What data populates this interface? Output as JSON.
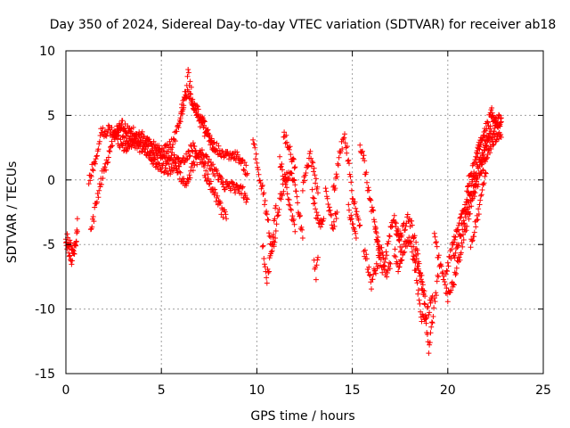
{
  "chart_data": {
    "type": "scatter",
    "title": "Day 350 of 2024, Sidereal Day-to-day VTEC variation (SDTVAR) for receiver ab18",
    "xlabel": "GPS time / hours",
    "ylabel": "SDTVAR / TECUs",
    "xlim": [
      0,
      25
    ],
    "ylim": [
      -15,
      10
    ],
    "xticks": [
      0,
      5,
      10,
      15,
      20,
      25
    ],
    "yticks": [
      -15,
      -10,
      -5,
      0,
      5,
      10
    ],
    "grid": true,
    "legend": "none",
    "marker": "+",
    "colors": {
      "series": "#ff0000",
      "grid": "#a0a0a0",
      "axis": "#000000"
    },
    "series": [
      {
        "name": "SDTVAR",
        "tracks": [
          [
            [
              0.0,
              -4.8
            ],
            [
              0.15,
              -5.5
            ],
            [
              0.3,
              -6.2
            ],
            [
              0.45,
              -5.5
            ],
            [
              0.55,
              -4.5
            ],
            [
              0.6,
              -3.0
            ]
          ],
          [
            [
              0.0,
              -4.5
            ],
            [
              0.2,
              -4.8
            ],
            [
              0.4,
              -5.5
            ],
            [
              0.6,
              -4.0
            ]
          ],
          [
            [
              1.2,
              -0.2
            ],
            [
              1.4,
              1.0
            ],
            [
              1.6,
              2.0
            ],
            [
              1.8,
              3.5
            ],
            [
              2.0,
              3.8
            ],
            [
              2.3,
              3.8
            ],
            [
              2.6,
              4.0
            ],
            [
              3.0,
              4.2
            ],
            [
              3.4,
              3.8
            ],
            [
              3.8,
              3.3
            ],
            [
              4.2,
              2.5
            ],
            [
              4.6,
              2.0
            ],
            [
              5.0,
              2.0
            ],
            [
              5.3,
              2.5
            ],
            [
              5.6,
              3.0
            ],
            [
              5.9,
              4.0
            ],
            [
              6.1,
              5.5
            ],
            [
              6.3,
              7.0
            ],
            [
              6.4,
              8.2
            ],
            [
              6.6,
              6.5
            ],
            [
              6.8,
              5.0
            ],
            [
              7.2,
              4.0
            ],
            [
              7.6,
              3.0
            ],
            [
              8.0,
              2.2
            ],
            [
              8.5,
              2.0
            ],
            [
              9.0,
              1.8
            ],
            [
              9.3,
              1.2
            ],
            [
              9.5,
              0.5
            ]
          ],
          [
            [
              1.3,
              -4.0
            ],
            [
              1.5,
              -2.5
            ],
            [
              1.7,
              -1.0
            ],
            [
              1.9,
              0.3
            ],
            [
              2.1,
              1.2
            ],
            [
              2.3,
              2.3
            ],
            [
              2.5,
              3.3
            ],
            [
              2.8,
              4.0
            ],
            [
              3.1,
              3.5
            ],
            [
              3.4,
              2.8
            ],
            [
              3.7,
              2.6
            ],
            [
              4.0,
              2.5
            ],
            [
              4.3,
              2.2
            ],
            [
              4.6,
              1.5
            ],
            [
              5.0,
              1.0
            ],
            [
              5.4,
              0.8
            ],
            [
              5.8,
              1.0
            ],
            [
              6.1,
              0.0
            ],
            [
              6.3,
              -0.8
            ],
            [
              6.5,
              0.5
            ],
            [
              6.8,
              1.5
            ],
            [
              7.1,
              2.0
            ],
            [
              7.4,
              1.5
            ],
            [
              7.7,
              0.8
            ],
            [
              8.0,
              0.3
            ],
            [
              8.3,
              -0.3
            ],
            [
              8.7,
              -0.5
            ],
            [
              9.0,
              -0.8
            ],
            [
              9.3,
              -1.0
            ],
            [
              9.5,
              -1.5
            ]
          ],
          [
            [
              2.5,
              3.8
            ],
            [
              2.8,
              3.0
            ],
            [
              3.0,
              2.5
            ],
            [
              3.3,
              2.8
            ],
            [
              3.6,
              3.2
            ],
            [
              4.0,
              3.4
            ],
            [
              4.4,
              3.0
            ],
            [
              4.8,
              2.3
            ],
            [
              5.2,
              1.8
            ],
            [
              5.5,
              2.0
            ],
            [
              5.8,
              1.5
            ],
            [
              6.0,
              1.0
            ],
            [
              6.4,
              2.0
            ],
            [
              6.7,
              2.8
            ],
            [
              7.0,
              1.8
            ],
            [
              7.3,
              0.5
            ],
            [
              7.6,
              -0.5
            ],
            [
              7.9,
              -1.5
            ],
            [
              8.2,
              -2.5
            ],
            [
              8.4,
              -3.0
            ]
          ],
          [
            [
              6.0,
              5.2
            ],
            [
              6.2,
              6.3
            ],
            [
              6.4,
              6.8
            ],
            [
              6.6,
              6.0
            ],
            [
              6.8,
              5.5
            ],
            [
              7.0,
              5.0
            ],
            [
              7.2,
              4.3
            ],
            [
              7.4,
              3.6
            ],
            [
              7.6,
              2.8
            ],
            [
              7.8,
              2.2
            ]
          ],
          [
            [
              9.8,
              2.8
            ],
            [
              10.0,
              1.5
            ],
            [
              10.2,
              -0.2
            ],
            [
              10.4,
              -1.5
            ],
            [
              10.6,
              -3.5
            ],
            [
              10.8,
              -5.5
            ],
            [
              11.0,
              -4.0
            ],
            [
              11.2,
              -1.5
            ],
            [
              11.5,
              0.0
            ],
            [
              11.8,
              0.5
            ],
            [
              12.0,
              -0.5
            ],
            [
              12.2,
              -2.5
            ],
            [
              12.4,
              -4.5
            ]
          ],
          [
            [
              10.3,
              -5.0
            ],
            [
              10.4,
              -6.5
            ],
            [
              10.5,
              -8.0
            ],
            [
              10.7,
              -6.0
            ],
            [
              10.9,
              -3.5
            ],
            [
              11.0,
              -2.0
            ]
          ],
          [
            [
              11.2,
              1.5
            ],
            [
              11.4,
              0.5
            ],
            [
              11.6,
              -1.0
            ],
            [
              11.8,
              -2.5
            ],
            [
              12.0,
              -4.0
            ]
          ],
          [
            [
              11.4,
              3.5
            ],
            [
              11.6,
              2.8
            ],
            [
              11.8,
              2.0
            ],
            [
              12.0,
              1.0
            ]
          ],
          [
            [
              12.4,
              -0.5
            ],
            [
              12.6,
              0.8
            ],
            [
              12.8,
              1.8
            ],
            [
              13.0,
              0.5
            ],
            [
              13.2,
              -1.0
            ]
          ],
          [
            [
              12.9,
              -1.0
            ],
            [
              13.1,
              -2.5
            ],
            [
              13.3,
              -3.5
            ],
            [
              13.5,
              -3.0
            ]
          ],
          [
            [
              13.0,
              -6.5
            ],
            [
              13.1,
              -7.5
            ],
            [
              13.2,
              -6.0
            ]
          ],
          [
            [
              13.6,
              -1.0
            ],
            [
              13.8,
              -2.5
            ],
            [
              14.0,
              -3.5
            ],
            [
              14.2,
              -2.5
            ]
          ],
          [
            [
              14.0,
              -1.0
            ],
            [
              14.2,
              0.5
            ],
            [
              14.4,
              2.5
            ],
            [
              14.6,
              3.5
            ],
            [
              14.8,
              1.5
            ],
            [
              15.0,
              -1.0
            ],
            [
              15.2,
              -2.5
            ],
            [
              15.4,
              -3.5
            ]
          ],
          [
            [
              14.8,
              -2.0
            ],
            [
              15.0,
              -3.5
            ],
            [
              15.2,
              -4.5
            ]
          ],
          [
            [
              15.4,
              2.5
            ],
            [
              15.6,
              1.5
            ],
            [
              15.8,
              -0.5
            ],
            [
              16.0,
              -2.0
            ],
            [
              16.2,
              -3.5
            ],
            [
              16.4,
              -5.5
            ],
            [
              16.5,
              -6.5
            ],
            [
              16.6,
              -7.0
            ],
            [
              16.8,
              -5.5
            ],
            [
              17.0,
              -4.0
            ],
            [
              17.2,
              -3.0
            ],
            [
              17.4,
              -4.5
            ],
            [
              17.6,
              -5.5
            ],
            [
              17.8,
              -5.0
            ],
            [
              18.0,
              -4.5
            ],
            [
              18.2,
              -6.0
            ],
            [
              18.4,
              -8.0
            ],
            [
              18.6,
              -10.5
            ],
            [
              18.8,
              -11.0
            ],
            [
              19.0,
              -10.0
            ],
            [
              19.2,
              -9.0
            ]
          ],
          [
            [
              15.6,
              -5.5
            ],
            [
              15.8,
              -6.5
            ],
            [
              16.0,
              -8.0
            ],
            [
              16.2,
              -7.0
            ],
            [
              16.4,
              -6.0
            ]
          ],
          [
            [
              16.2,
              -4.0
            ],
            [
              16.4,
              -5.0
            ],
            [
              16.6,
              -6.0
            ],
            [
              16.8,
              -7.5
            ],
            [
              17.0,
              -6.5
            ]
          ],
          [
            [
              17.3,
              -3.5
            ],
            [
              17.5,
              -4.5
            ],
            [
              17.7,
              -3.8
            ],
            [
              17.9,
              -3.0
            ],
            [
              18.1,
              -3.5
            ],
            [
              18.3,
              -5.0
            ],
            [
              18.5,
              -6.5
            ],
            [
              18.7,
              -8.5
            ],
            [
              18.9,
              -11.5
            ],
            [
              19.0,
              -13.0
            ],
            [
              19.1,
              -12.0
            ],
            [
              19.3,
              -9.5
            ],
            [
              19.5,
              -7.5
            ]
          ],
          [
            [
              18.2,
              -5.5
            ],
            [
              18.4,
              -6.5
            ],
            [
              18.6,
              -7.8
            ],
            [
              18.8,
              -9.0
            ]
          ],
          [
            [
              17.2,
              -5.5
            ],
            [
              17.4,
              -7.0
            ],
            [
              17.6,
              -6.2
            ]
          ],
          [
            [
              19.3,
              -4.5
            ],
            [
              19.6,
              -6.5
            ],
            [
              20.0,
              -9.0
            ],
            [
              20.3,
              -8.0
            ],
            [
              20.6,
              -6.0
            ],
            [
              20.9,
              -4.0
            ],
            [
              21.2,
              -2.0
            ],
            [
              21.5,
              -0.5
            ],
            [
              21.8,
              1.0
            ],
            [
              22.0,
              1.5
            ],
            [
              22.2,
              2.5
            ],
            [
              22.4,
              3.0
            ],
            [
              22.6,
              3.5
            ],
            [
              22.8,
              3.3
            ]
          ],
          [
            [
              19.9,
              -7.0
            ],
            [
              20.2,
              -5.5
            ],
            [
              20.5,
              -4.0
            ],
            [
              20.8,
              -2.5
            ],
            [
              21.1,
              -1.0
            ],
            [
              21.4,
              0.2
            ],
            [
              21.7,
              1.5
            ],
            [
              22.0,
              2.6
            ],
            [
              22.3,
              3.5
            ],
            [
              22.6,
              4.2
            ],
            [
              22.8,
              4.5
            ]
          ],
          [
            [
              20.3,
              -6.0
            ],
            [
              20.6,
              -4.5
            ],
            [
              20.9,
              -3.0
            ],
            [
              21.2,
              -1.5
            ],
            [
              21.5,
              0.0
            ],
            [
              21.8,
              1.5
            ],
            [
              22.1,
              3.5
            ],
            [
              22.3,
              4.8
            ],
            [
              22.5,
              4.6
            ],
            [
              22.8,
              4.8
            ]
          ],
          [
            [
              21.0,
              -0.5
            ],
            [
              21.2,
              0.5
            ],
            [
              21.4,
              1.0
            ],
            [
              21.6,
              2.5
            ],
            [
              21.8,
              3.3
            ],
            [
              22.0,
              3.0
            ]
          ],
          [
            [
              21.5,
              1.8
            ],
            [
              21.7,
              2.8
            ],
            [
              21.9,
              3.5
            ],
            [
              22.1,
              4.5
            ],
            [
              22.3,
              5.3
            ],
            [
              22.5,
              4.5
            ]
          ],
          [
            [
              21.2,
              -5.0
            ],
            [
              21.6,
              -2.5
            ],
            [
              22.0,
              0.5
            ]
          ]
        ]
      }
    ]
  }
}
